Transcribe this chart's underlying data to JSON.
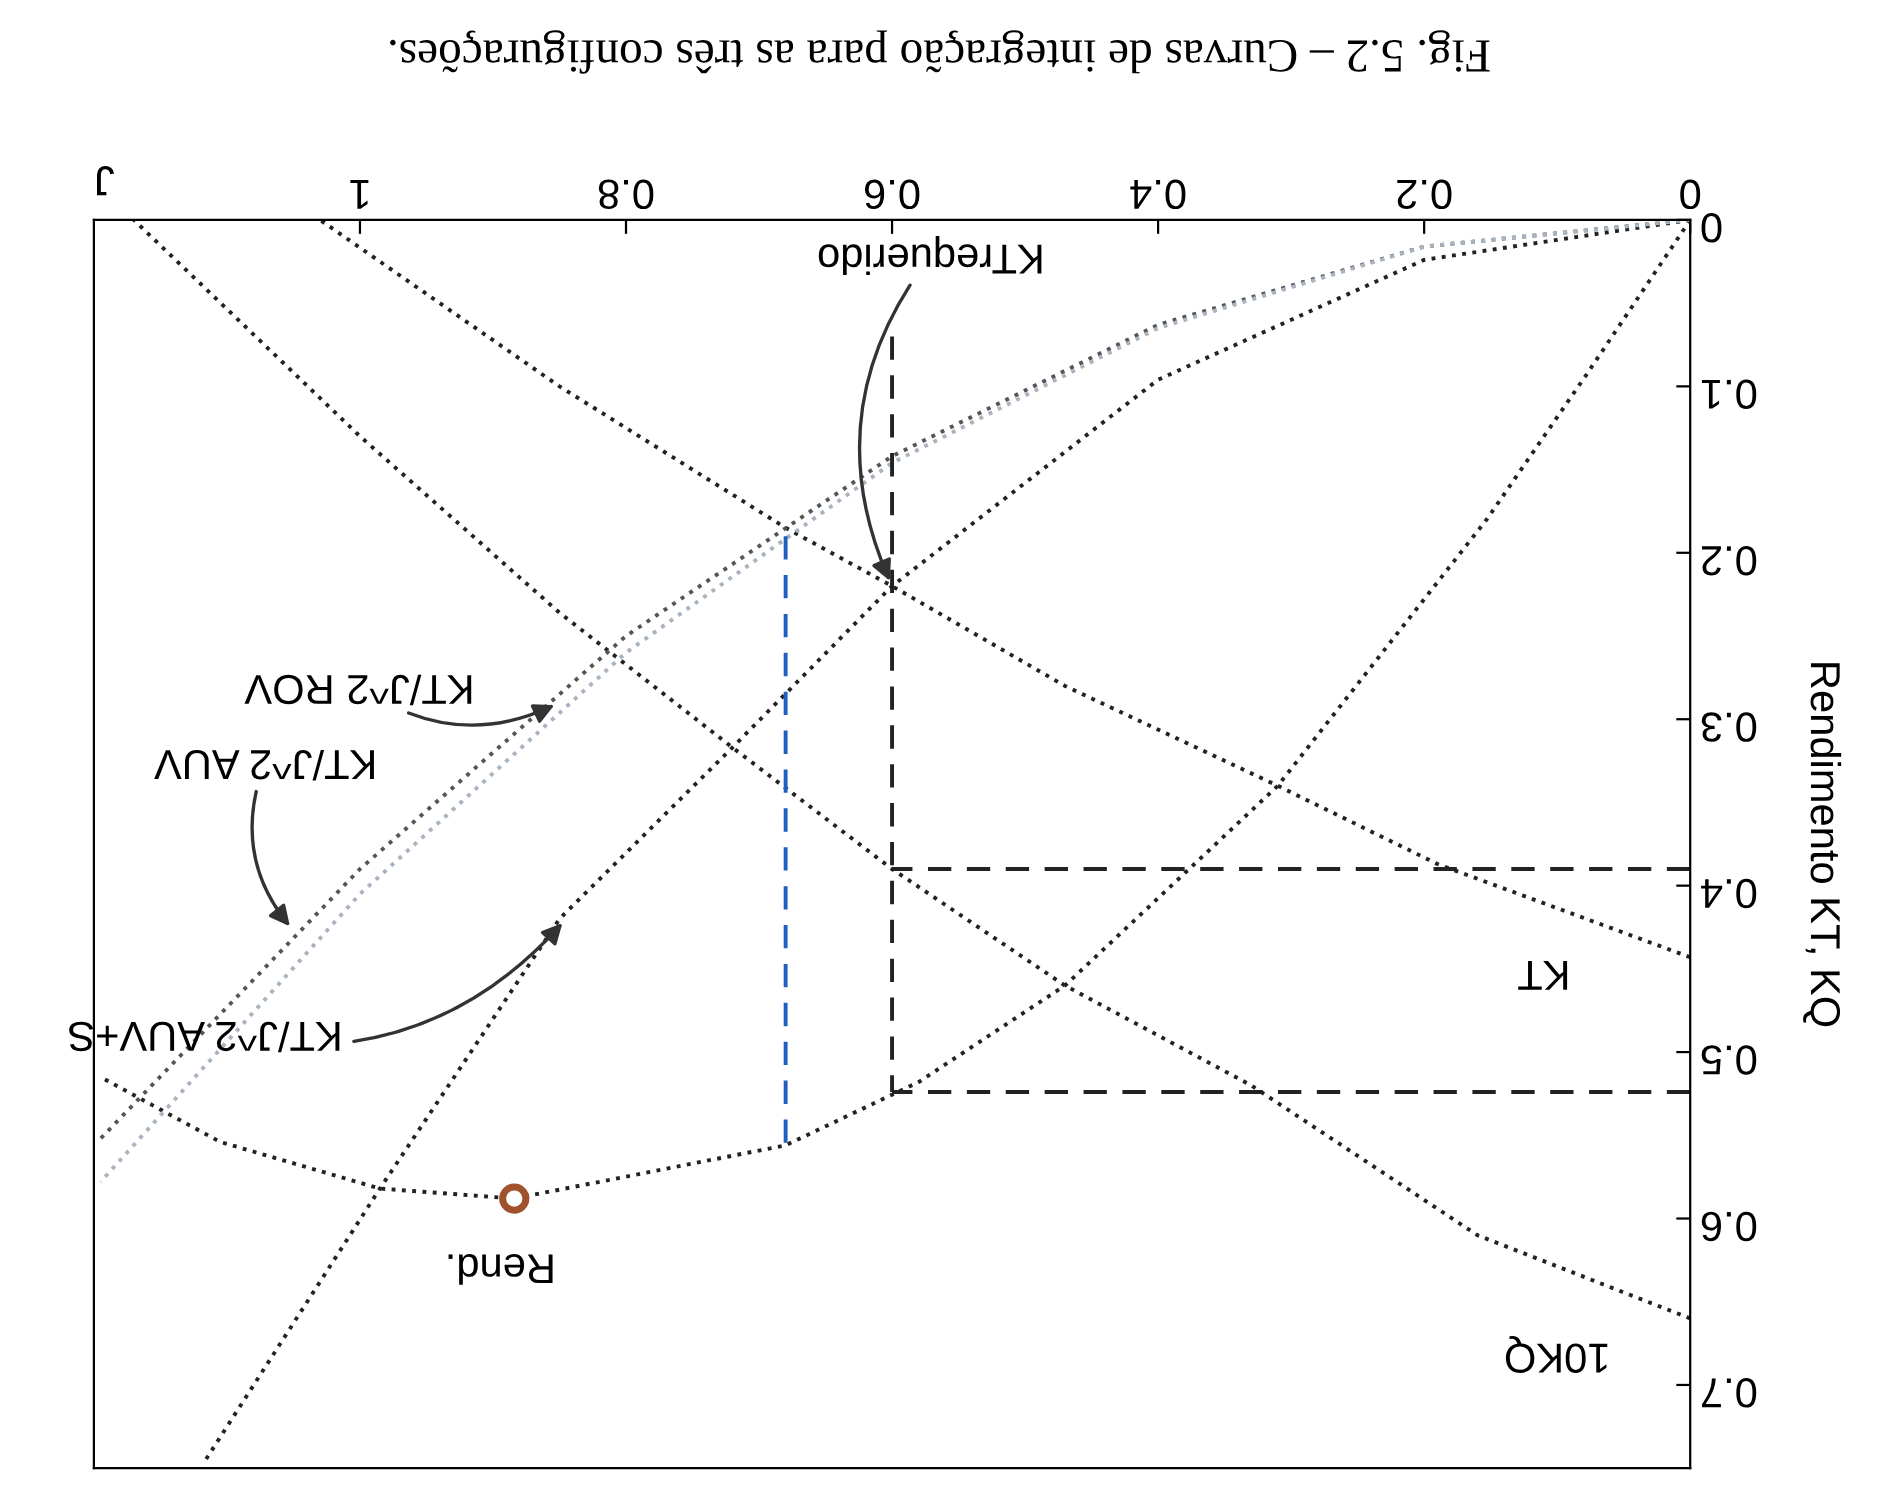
{
  "chart_data": {
    "type": "line",
    "title": "Fig. 5.2 – Curvas de integração para as três configurações.",
    "xlabel": "J",
    "ylabel": "Rendimento KT, KQ",
    "xlim": [
      1.2,
      0
    ],
    "ylim": [
      0.75,
      0
    ],
    "xticks": [
      0,
      0.2,
      0.4,
      0.6,
      0.8,
      1
    ],
    "yticks": [
      0,
      0.1,
      0.2,
      0.3,
      0.4,
      0.5,
      0.6,
      0.7
    ],
    "grid": false,
    "line_style": "dotted",
    "marker": "none",
    "series": [
      {
        "color": "#222222",
        "x": [
          0,
          0.19,
          0.31,
          0.47,
          0.6,
          0.68,
          0.85,
          1.03
        ],
        "values": [
          0.443,
          0.387,
          0.34,
          0.28,
          0.22,
          0.185,
          0.1,
          0
        ]
      },
      {
        "color": "#222222",
        "x": [
          0,
          0.16,
          0.33,
          0.47,
          0.6,
          0.72,
          0.85,
          1.0,
          1.17
        ],
        "values": [
          0.66,
          0.61,
          0.52,
          0.46,
          0.39,
          0.317,
          0.236,
          0.13,
          0
        ]
      },
      {
        "color": "#222222",
        "x": [
          0,
          0.078,
          0.153,
          0.31,
          0.47,
          0.58,
          0.68,
          0.884,
          0.985,
          1.105,
          1.195
        ],
        "values": [
          0,
          0.093,
          0.18,
          0.34,
          0.46,
          0.518,
          0.556,
          0.588,
          0.582,
          0.554,
          0.515
        ]
      },
      {
        "color": "#222222",
        "x": [
          0,
          0.2,
          0.4,
          0.6,
          0.72,
          0.85,
          0.985,
          1.116
        ],
        "values": [
          0,
          0.024,
          0.096,
          0.22,
          0.317,
          0.42,
          0.582,
          0.745
        ]
      },
      {
        "color": "#555555",
        "x": [
          0,
          0.2,
          0.4,
          0.6,
          0.8,
          1.0,
          1.195
        ],
        "values": [
          0,
          0.016,
          0.063,
          0.142,
          0.25,
          0.39,
          0.552
        ]
      },
      {
        "color": "#a8b4c0",
        "x": [
          0,
          0.2,
          0.4,
          0.6,
          0.8,
          1.0,
          1.195
        ],
        "values": [
          0,
          0.016,
          0.065,
          0.146,
          0.26,
          0.405,
          0.578
        ]
      },
      {
        "color": "#222222",
        "line_style": "dashed",
        "x": [
          0.6,
          0.6
        ],
        "values": [
          0.07,
          0.524
        ]
      },
      {
        "color": "#222222",
        "line_style": "dashed",
        "x": [
          0,
          0.6
        ],
        "values": [
          0.39,
          0.39
        ]
      },
      {
        "color": "#222222",
        "line_style": "dashed",
        "x": [
          0,
          0.6
        ],
        "values": [
          0.524,
          0.524
        ]
      },
      {
        "color": "#1f5fbf",
        "line_style": "dashed",
        "x": [
          0.68,
          0.68
        ],
        "values": [
          0.19,
          0.556
        ]
      },
      {
        "type": "scatter",
        "color": "#a0522d",
        "marker": "circle",
        "x": [
          0.884
        ],
        "values": [
          0.588
        ]
      }
    ],
    "annotations": [
      {
        "text": "KTrequerido",
        "x": 0.6,
        "y": 0.22
      },
      {
        "text": "KT",
        "x": 0.11,
        "y": 0.41
      },
      {
        "text": "10KQ",
        "x": 0.1,
        "y": 0.63
      },
      {
        "text": "Rend.",
        "x": 0.884,
        "y": 0.588
      },
      {
        "text": "KT/J^2 ROV",
        "x": 0.85,
        "y": 0.29
      },
      {
        "text": "KT/J^2 AUV",
        "x": 1.05,
        "y": 0.427
      },
      {
        "text": "KT/J^2 AUV+S",
        "x": 0.845,
        "y": 0.42
      }
    ]
  }
}
